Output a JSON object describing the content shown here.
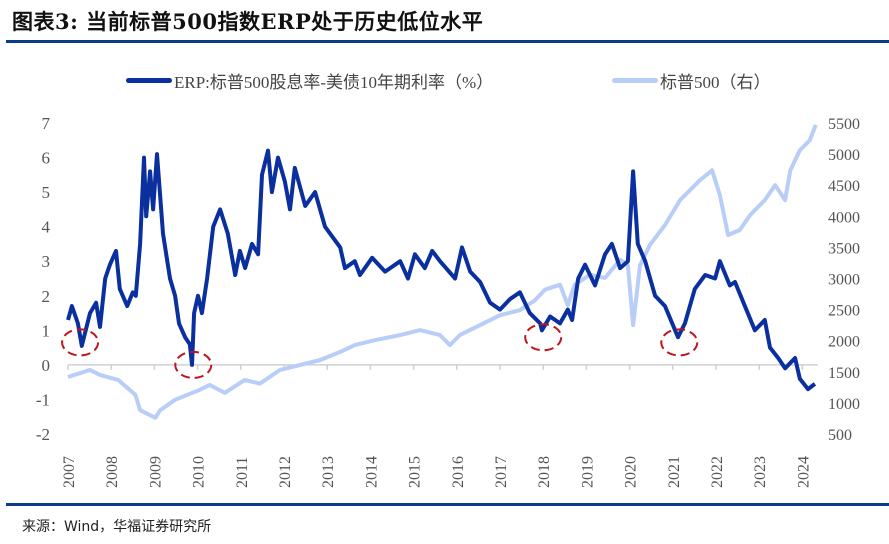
{
  "header": {
    "title": "图表3:  当前标普500指数ERP处于历史低位水平"
  },
  "footer": {
    "source": "来源：Wind，华福证券研究所"
  },
  "chart_data": {
    "type": "line",
    "title": "图表3:  当前标普500指数ERP处于历史低位水平",
    "legend_position": "top",
    "grid": false,
    "x_ticks": [
      "2007",
      "2008",
      "2009",
      "2010",
      "2011",
      "2012",
      "2013",
      "2014",
      "2015",
      "2016",
      "2017",
      "2018",
      "2019",
      "2020",
      "2021",
      "2022",
      "2023",
      "2024"
    ],
    "xlim": [
      2007,
      2025
    ],
    "y_left": {
      "lim": [
        -2,
        7
      ],
      "ticks": [
        7,
        6,
        5,
        4,
        3,
        2,
        1,
        0,
        -1,
        -2
      ]
    },
    "y_right": {
      "lim": [
        500,
        5500
      ],
      "ticks": [
        5500,
        5000,
        4500,
        4000,
        3500,
        3000,
        2500,
        2000,
        1500,
        1000,
        500
      ]
    },
    "series": [
      {
        "name": "ERP:标普500股息率-美债10年期利率（%）",
        "axis": "left",
        "color": "#0a2f9e",
        "x": [
          2007.0,
          2007.09,
          2007.23,
          2007.32,
          2007.51,
          2007.65,
          2007.74,
          2007.86,
          2007.97,
          2008.11,
          2008.2,
          2008.37,
          2008.5,
          2008.57,
          2008.67,
          2008.76,
          2008.81,
          2008.9,
          2008.97,
          2009.06,
          2009.2,
          2009.36,
          2009.48,
          2009.57,
          2009.71,
          2009.82,
          2009.87,
          2009.92,
          2010.01,
          2010.1,
          2010.22,
          2010.36,
          2010.52,
          2010.7,
          2010.87,
          2010.98,
          2011.1,
          2011.26,
          2011.4,
          2011.49,
          2011.63,
          2011.72,
          2011.86,
          2012.02,
          2012.14,
          2012.25,
          2012.49,
          2012.72,
          2012.95,
          2013.3,
          2013.41,
          2013.64,
          2013.76,
          2014.04,
          2014.34,
          2014.69,
          2014.87,
          2015.03,
          2015.26,
          2015.43,
          2015.61,
          2015.96,
          2016.12,
          2016.31,
          2016.54,
          2016.77,
          2017.0,
          2017.23,
          2017.46,
          2017.69,
          2017.93,
          2017.97,
          2018.16,
          2018.39,
          2018.57,
          2018.67,
          2018.81,
          2018.97,
          2019.2,
          2019.43,
          2019.59,
          2019.78,
          2019.96,
          2020.08,
          2020.19,
          2020.36,
          2020.59,
          2020.82,
          2021.12,
          2021.28,
          2021.51,
          2021.75,
          2021.98,
          2022.09,
          2022.32,
          2022.44,
          2022.67,
          2022.9,
          2023.13,
          2023.25,
          2023.44,
          2023.6,
          2023.83,
          2023.94,
          2024.13,
          2024.29
        ],
        "y": [
          1.3,
          1.7,
          1.2,
          0.55,
          1.5,
          1.8,
          1.1,
          2.5,
          2.9,
          3.3,
          2.2,
          1.7,
          2.1,
          2.0,
          3.5,
          6.0,
          4.3,
          5.6,
          4.5,
          6.1,
          3.8,
          2.5,
          2.0,
          1.2,
          0.8,
          0.6,
          0.0,
          1.5,
          2.0,
          1.5,
          2.5,
          4.0,
          4.5,
          3.8,
          2.6,
          3.3,
          2.8,
          3.5,
          3.2,
          5.5,
          6.2,
          5.0,
          6.0,
          5.3,
          4.5,
          5.7,
          4.6,
          5.0,
          4.0,
          3.4,
          2.8,
          3.0,
          2.6,
          3.1,
          2.7,
          3.0,
          2.5,
          3.2,
          2.8,
          3.3,
          3.0,
          2.5,
          3.4,
          2.7,
          2.4,
          1.8,
          1.6,
          1.9,
          2.1,
          1.5,
          1.2,
          1.0,
          1.4,
          1.2,
          1.6,
          1.3,
          2.5,
          2.9,
          2.3,
          3.2,
          3.5,
          2.8,
          3.0,
          5.6,
          3.5,
          3.0,
          2.0,
          1.7,
          0.8,
          1.2,
          2.2,
          2.6,
          2.5,
          3.0,
          2.3,
          2.4,
          1.7,
          1.0,
          1.3,
          0.5,
          0.2,
          -0.1,
          0.2,
          -0.4,
          -0.7,
          -0.55
        ]
      },
      {
        "name": "标普500（右）",
        "axis": "right",
        "color": "#b8cdf7",
        "x": [
          2007.0,
          2007.51,
          2007.74,
          2008.16,
          2008.56,
          2008.67,
          2009.02,
          2009.13,
          2009.48,
          2010.05,
          2010.28,
          2010.63,
          2011.09,
          2011.44,
          2011.91,
          2012.37,
          2012.84,
          2013.3,
          2013.64,
          2014.11,
          2014.69,
          2015.15,
          2015.61,
          2015.84,
          2016.07,
          2016.54,
          2017.0,
          2017.46,
          2017.81,
          2018.04,
          2018.39,
          2018.57,
          2018.73,
          2019.08,
          2019.43,
          2019.78,
          2019.96,
          2020.08,
          2020.24,
          2020.47,
          2020.82,
          2021.17,
          2021.63,
          2021.91,
          2022.09,
          2022.28,
          2022.55,
          2022.79,
          2023.13,
          2023.37,
          2023.6,
          2023.72,
          2023.94,
          2024.17,
          2024.31
        ],
        "y": [
          1417,
          1530,
          1450,
          1370,
          1130,
          885,
          760,
          880,
          1050,
          1210,
          1290,
          1160,
          1370,
          1310,
          1530,
          1610,
          1690,
          1820,
          1930,
          2010,
          2090,
          2170,
          2090,
          1930,
          2090,
          2250,
          2410,
          2490,
          2650,
          2820,
          2900,
          2570,
          2900,
          3060,
          3010,
          3300,
          3210,
          2250,
          3210,
          3540,
          3860,
          4260,
          4580,
          4740,
          4340,
          3700,
          3780,
          4020,
          4260,
          4500,
          4260,
          4740,
          5060,
          5220,
          5470
        ]
      }
    ],
    "annotations": [
      {
        "type": "dashed-circle",
        "color": "#c0141c",
        "x": 2007.28,
        "y": 0.65
      },
      {
        "type": "dashed-circle",
        "color": "#c0141c",
        "x": 2009.9,
        "y": 0.0
      },
      {
        "type": "dashed-circle",
        "color": "#c0141c",
        "x": 2018.0,
        "y": 0.8
      },
      {
        "type": "dashed-circle",
        "color": "#c0141c",
        "x": 2021.15,
        "y": 0.65
      }
    ]
  }
}
